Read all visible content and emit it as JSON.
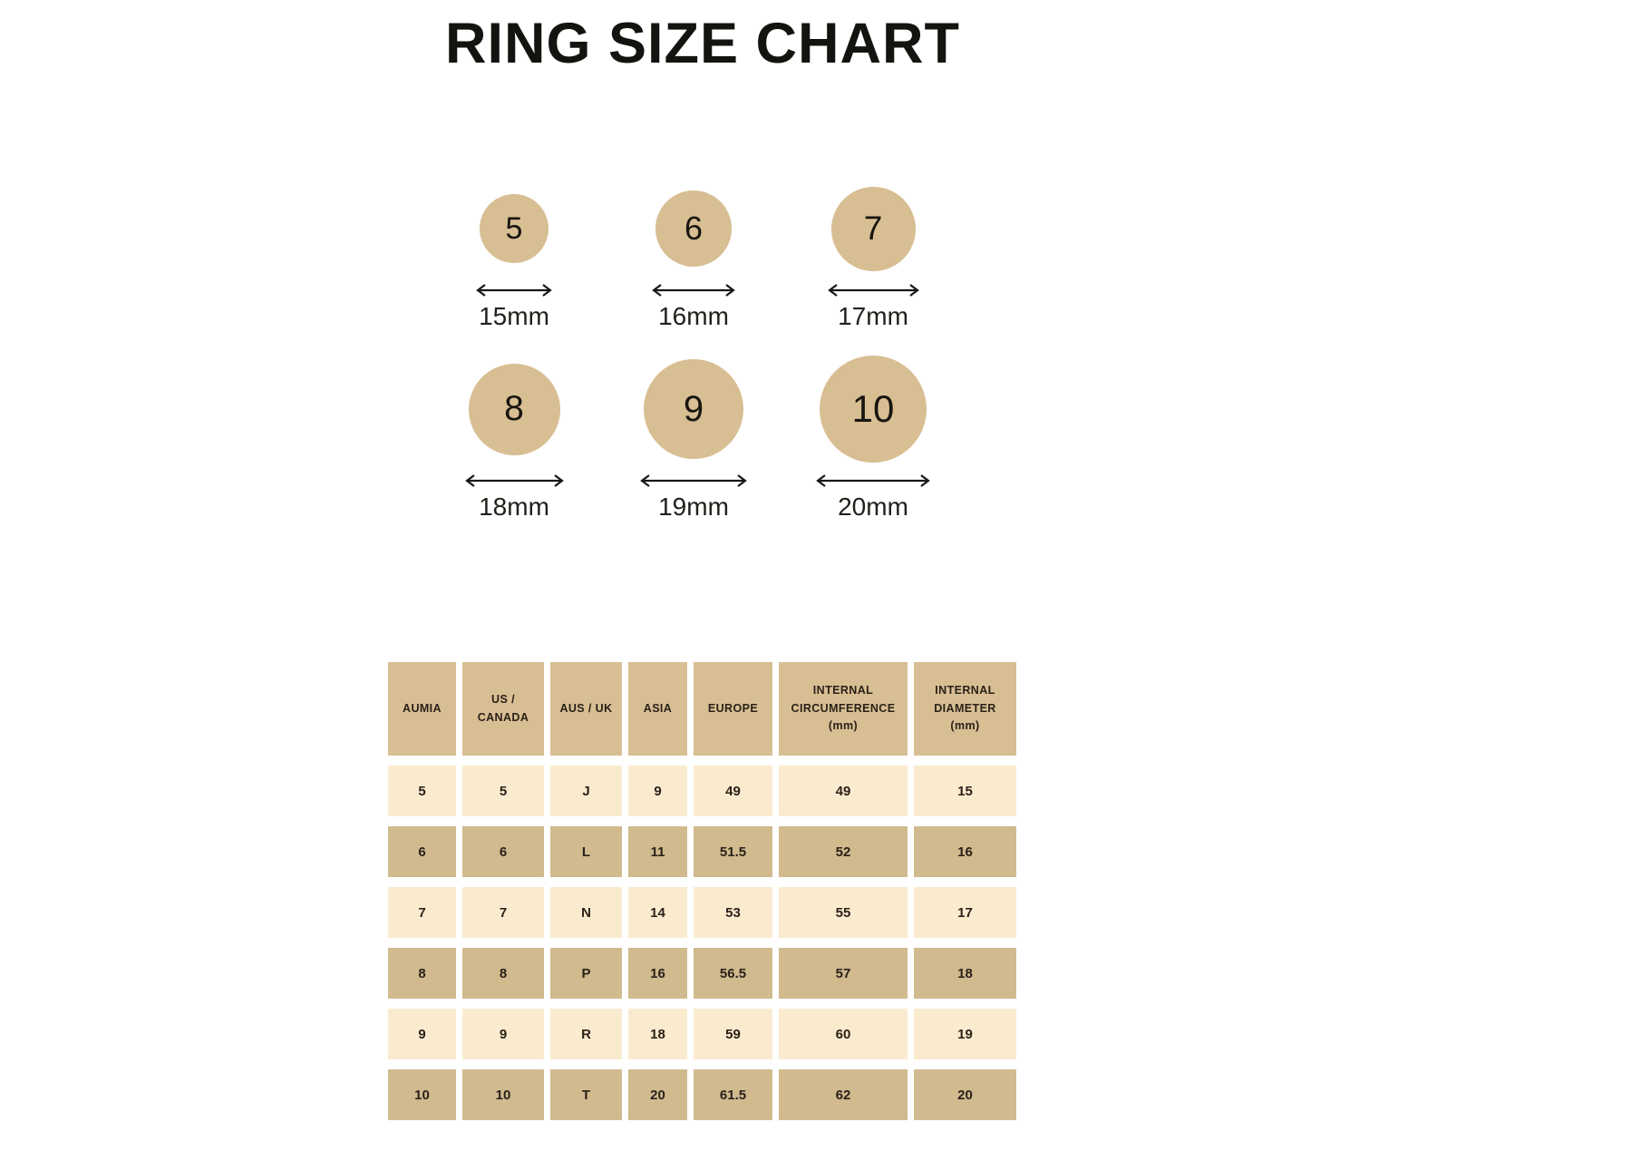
{
  "title": "RING SIZE CHART",
  "colors": {
    "tan": "#D8BE93",
    "tan_dark": "#D0BA8E",
    "cream": "#FAEBCF",
    "text": "#2a2118"
  },
  "ring_diagram": {
    "rows": [
      {
        "rings": [
          {
            "size": "5",
            "diameter_label": "15mm",
            "diameter_mm": 15
          },
          {
            "size": "6",
            "diameter_label": "16mm",
            "diameter_mm": 16
          },
          {
            "size": "7",
            "diameter_label": "17mm",
            "diameter_mm": 17
          }
        ]
      },
      {
        "rings": [
          {
            "size": "8",
            "diameter_label": "18mm",
            "diameter_mm": 18
          },
          {
            "size": "9",
            "diameter_label": "19mm",
            "diameter_mm": 19
          },
          {
            "size": "10",
            "diameter_label": "20mm",
            "diameter_mm": 20
          }
        ]
      }
    ]
  },
  "size_table": {
    "headers": [
      "AUMIA",
      "US / CANADA",
      "AUS / UK",
      "ASIA",
      "EUROPE",
      "INTERNAL CIRCUMFERENCE (mm)",
      "INTERNAL DIAMETER (mm)"
    ],
    "rows": [
      [
        "5",
        "5",
        "J",
        "9",
        "49",
        "49",
        "15"
      ],
      [
        "6",
        "6",
        "L",
        "11",
        "51.5",
        "52",
        "16"
      ],
      [
        "7",
        "7",
        "N",
        "14",
        "53",
        "55",
        "17"
      ],
      [
        "8",
        "8",
        "P",
        "16",
        "56.5",
        "57",
        "18"
      ],
      [
        "9",
        "9",
        "R",
        "18",
        "59",
        "60",
        "19"
      ],
      [
        "10",
        "10",
        "T",
        "20",
        "61.5",
        "62",
        "20"
      ]
    ]
  },
  "chart_data": {
    "type": "table",
    "title": "RING SIZE CHART",
    "columns": [
      "AUMIA",
      "US / CANADA",
      "AUS / UK",
      "ASIA",
      "EUROPE",
      "INTERNAL CIRCUMFERENCE (mm)",
      "INTERNAL DIAMETER (mm)"
    ],
    "rows": [
      [
        "5",
        "5",
        "J",
        "9",
        "49",
        "49",
        "15"
      ],
      [
        "6",
        "6",
        "L",
        "11",
        "51.5",
        "52",
        "16"
      ],
      [
        "7",
        "7",
        "N",
        "14",
        "53",
        "55",
        "17"
      ],
      [
        "8",
        "8",
        "P",
        "16",
        "56.5",
        "57",
        "18"
      ],
      [
        "9",
        "9",
        "R",
        "18",
        "59",
        "60",
        "19"
      ],
      [
        "10",
        "10",
        "T",
        "20",
        "61.5",
        "62",
        "20"
      ]
    ],
    "ring_diameters": [
      {
        "size": 5,
        "diameter_mm": 15
      },
      {
        "size": 6,
        "diameter_mm": 16
      },
      {
        "size": 7,
        "diameter_mm": 17
      },
      {
        "size": 8,
        "diameter_mm": 18
      },
      {
        "size": 9,
        "diameter_mm": 19
      },
      {
        "size": 10,
        "diameter_mm": 20
      }
    ]
  }
}
